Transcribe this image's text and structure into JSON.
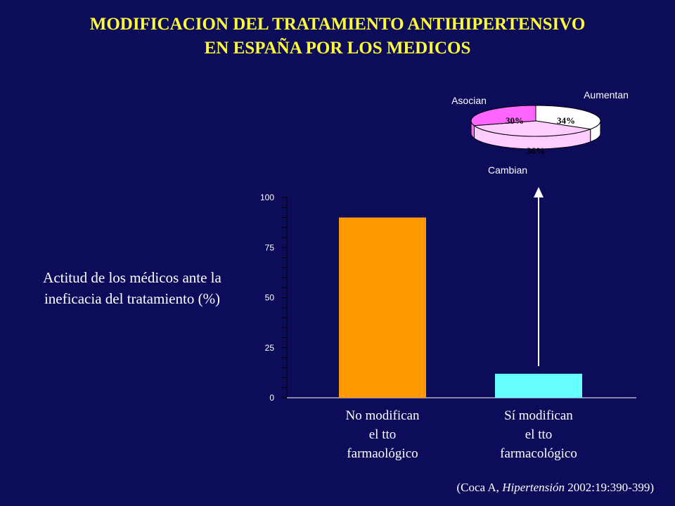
{
  "title": {
    "line1": "MODIFICACION DEL TRATAMIENTO ANTIHIPERTENSIVO",
    "line2": "EN ESPAÑA POR LOS MEDICOS"
  },
  "side_label": "Actitud de los médicos ante la ineficacia del tratamiento (%)",
  "citation": {
    "prefix": "(Coca A, ",
    "journal": "Hipertensión",
    "suffix": " 2002:19:390-399)"
  },
  "colors": {
    "background": "#0c0c5a",
    "title": "#ffff33",
    "bar_1": "#ff9900",
    "bar_2": "#66ffff",
    "pie_aumentan": "#ffffff",
    "pie_cambian": "#ffccff",
    "pie_asocian": "#ff66ff"
  },
  "chart_data": [
    {
      "type": "bar",
      "categories": [
        [
          "No modifican",
          "el tto",
          "farmaológico"
        ],
        [
          "Sí modifican",
          "el tto",
          "farmacológico"
        ]
      ],
      "values": [
        90,
        12
      ],
      "ylim": [
        0,
        100
      ],
      "yticks": [
        0,
        25,
        50,
        75,
        100
      ],
      "ylabel": "Actitud de los médicos ante la ineficacia del tratamiento (%)"
    },
    {
      "type": "pie",
      "style": "3d",
      "slices": [
        {
          "label": "Aumentan",
          "value": 34,
          "display": "34%"
        },
        {
          "label": "Cambian",
          "value": 36,
          "display": "36%"
        },
        {
          "label": "Asocian",
          "value": 30,
          "display": "30%"
        }
      ]
    }
  ]
}
